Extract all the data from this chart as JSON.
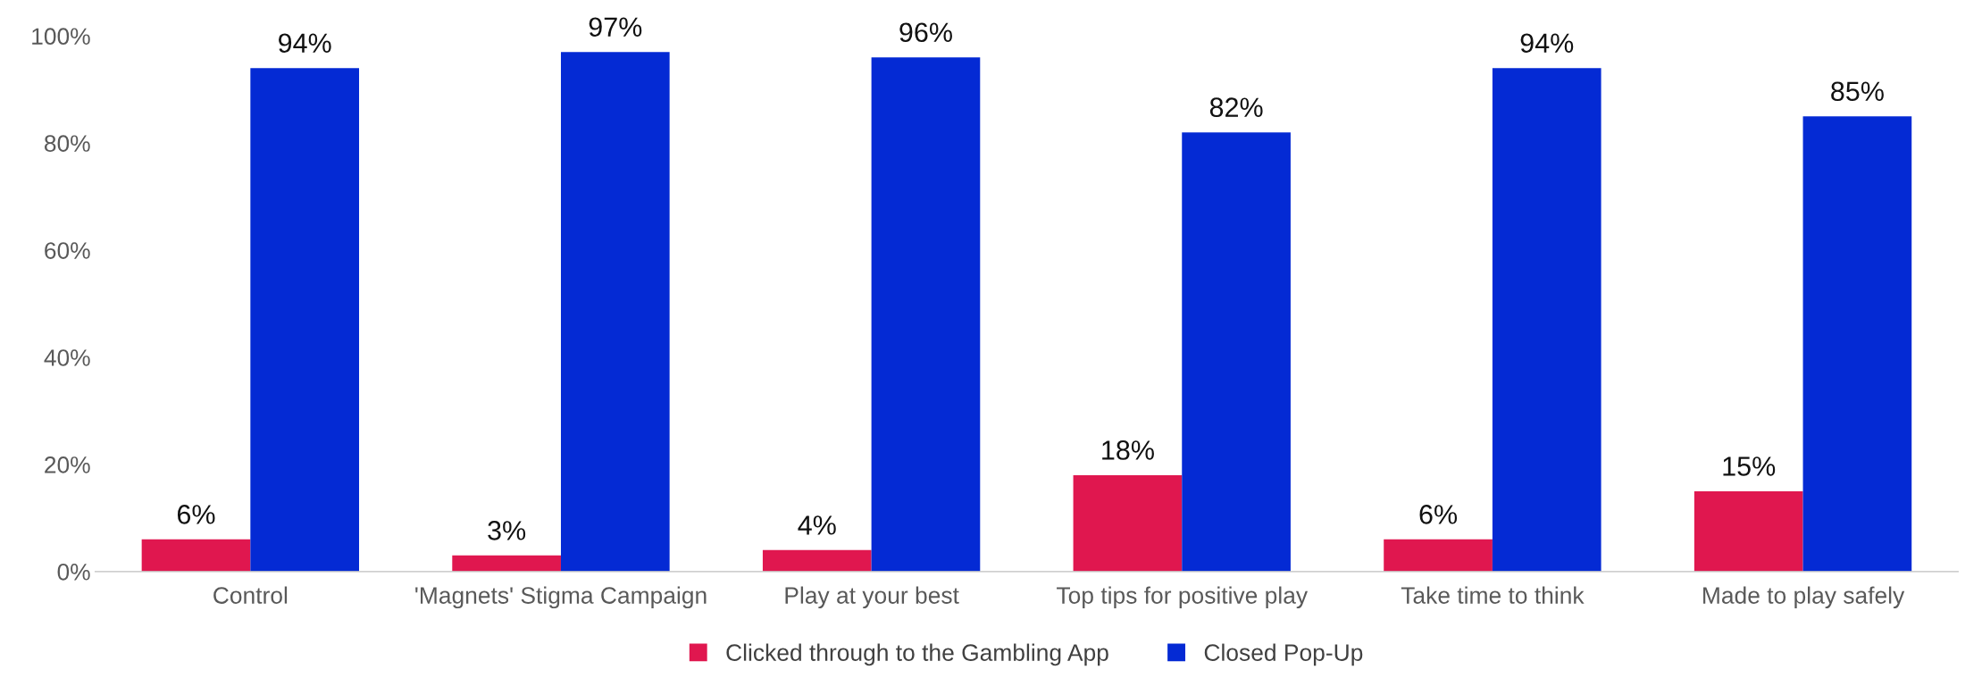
{
  "chart_data": {
    "type": "bar",
    "categories": [
      "Control",
      "'Magnets' Stigma Campaign",
      "Play at your best",
      "Top tips for positive play",
      "Take time to think",
      "Made to play safely"
    ],
    "series": [
      {
        "name": "Clicked through to the Gambling App",
        "color": "#e0174f",
        "values": [
          6,
          3,
          4,
          18,
          6,
          15
        ],
        "value_labels": [
          "6%",
          "3%",
          "4%",
          "18%",
          "6%",
          "15%"
        ]
      },
      {
        "name": "Closed Pop-Up",
        "color": "#042ad4",
        "values": [
          94,
          97,
          96,
          82,
          94,
          85
        ],
        "value_labels": [
          "94%",
          "97%",
          "96%",
          "82%",
          "94%",
          "85%"
        ]
      }
    ],
    "ylim": [
      0,
      100
    ],
    "yticks": [
      {
        "value": 0,
        "label": "0%"
      },
      {
        "value": 20,
        "label": "20%"
      },
      {
        "value": 40,
        "label": "40%"
      },
      {
        "value": 60,
        "label": "60%"
      },
      {
        "value": 80,
        "label": "80%"
      },
      {
        "value": 100,
        "label": "100%"
      }
    ],
    "legend": "bottom",
    "grid": false
  }
}
